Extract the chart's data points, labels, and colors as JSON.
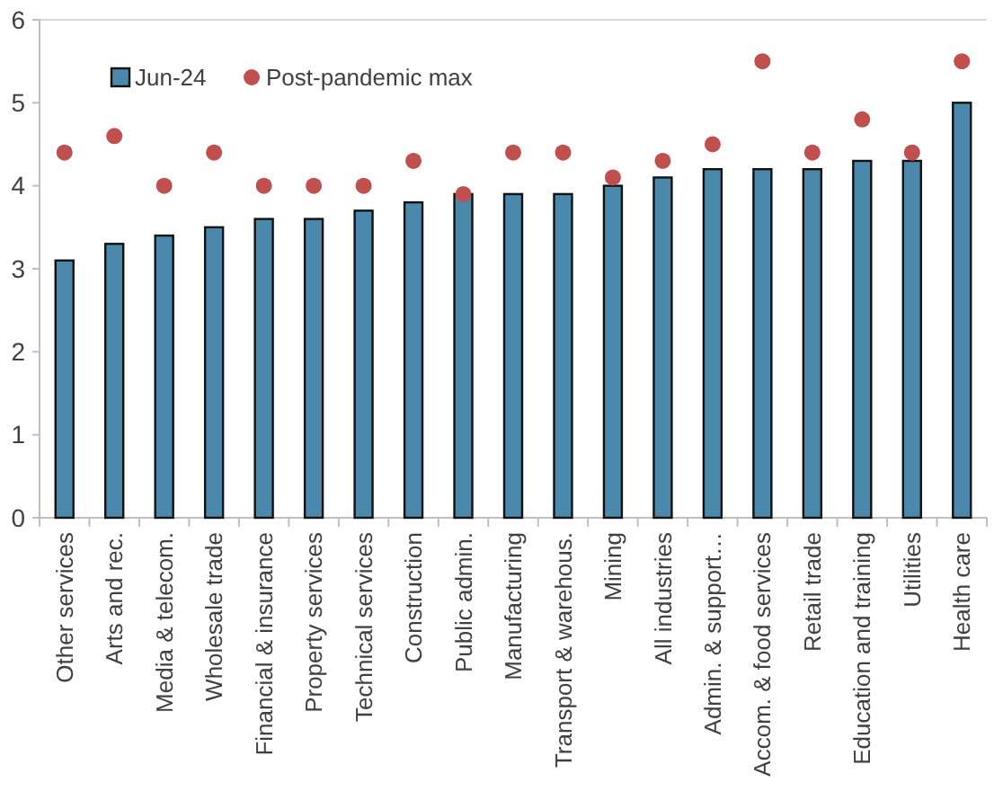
{
  "chart_data": {
    "type": "bar",
    "categories": [
      "Other services",
      "Arts and rec.",
      "Media & telecom.",
      "Wholesale trade",
      "Financial & insurance",
      "Property services",
      "Technical services",
      "Construction",
      "Public admin.",
      "Manufacturing",
      "Transport & warehous.",
      "Mining",
      "All industries",
      "Admin. & support…",
      "Accom. & food services",
      "Retail trade",
      "Education and training",
      "Utilities",
      "Health care"
    ],
    "series": [
      {
        "name": "Jun-24",
        "color": "#4a89ab",
        "values": [
          3.1,
          3.3,
          3.4,
          3.5,
          3.6,
          3.6,
          3.7,
          3.8,
          3.9,
          3.9,
          3.9,
          4.0,
          4.1,
          4.2,
          4.2,
          4.2,
          4.3,
          4.3,
          5.0
        ]
      },
      {
        "name": "Post-pandemic max",
        "type": "scatter",
        "color": "#c0504d",
        "values": [
          4.4,
          4.6,
          4.0,
          4.4,
          4.0,
          4.0,
          4.0,
          4.3,
          3.9,
          4.4,
          4.4,
          4.1,
          4.3,
          4.5,
          5.5,
          4.4,
          4.8,
          4.4,
          5.5
        ]
      }
    ],
    "ylim": [
      0,
      6
    ],
    "yticks": [
      0,
      1,
      2,
      3,
      4,
      5,
      6
    ],
    "grid": false,
    "legend": "top left",
    "marker": "circle"
  }
}
